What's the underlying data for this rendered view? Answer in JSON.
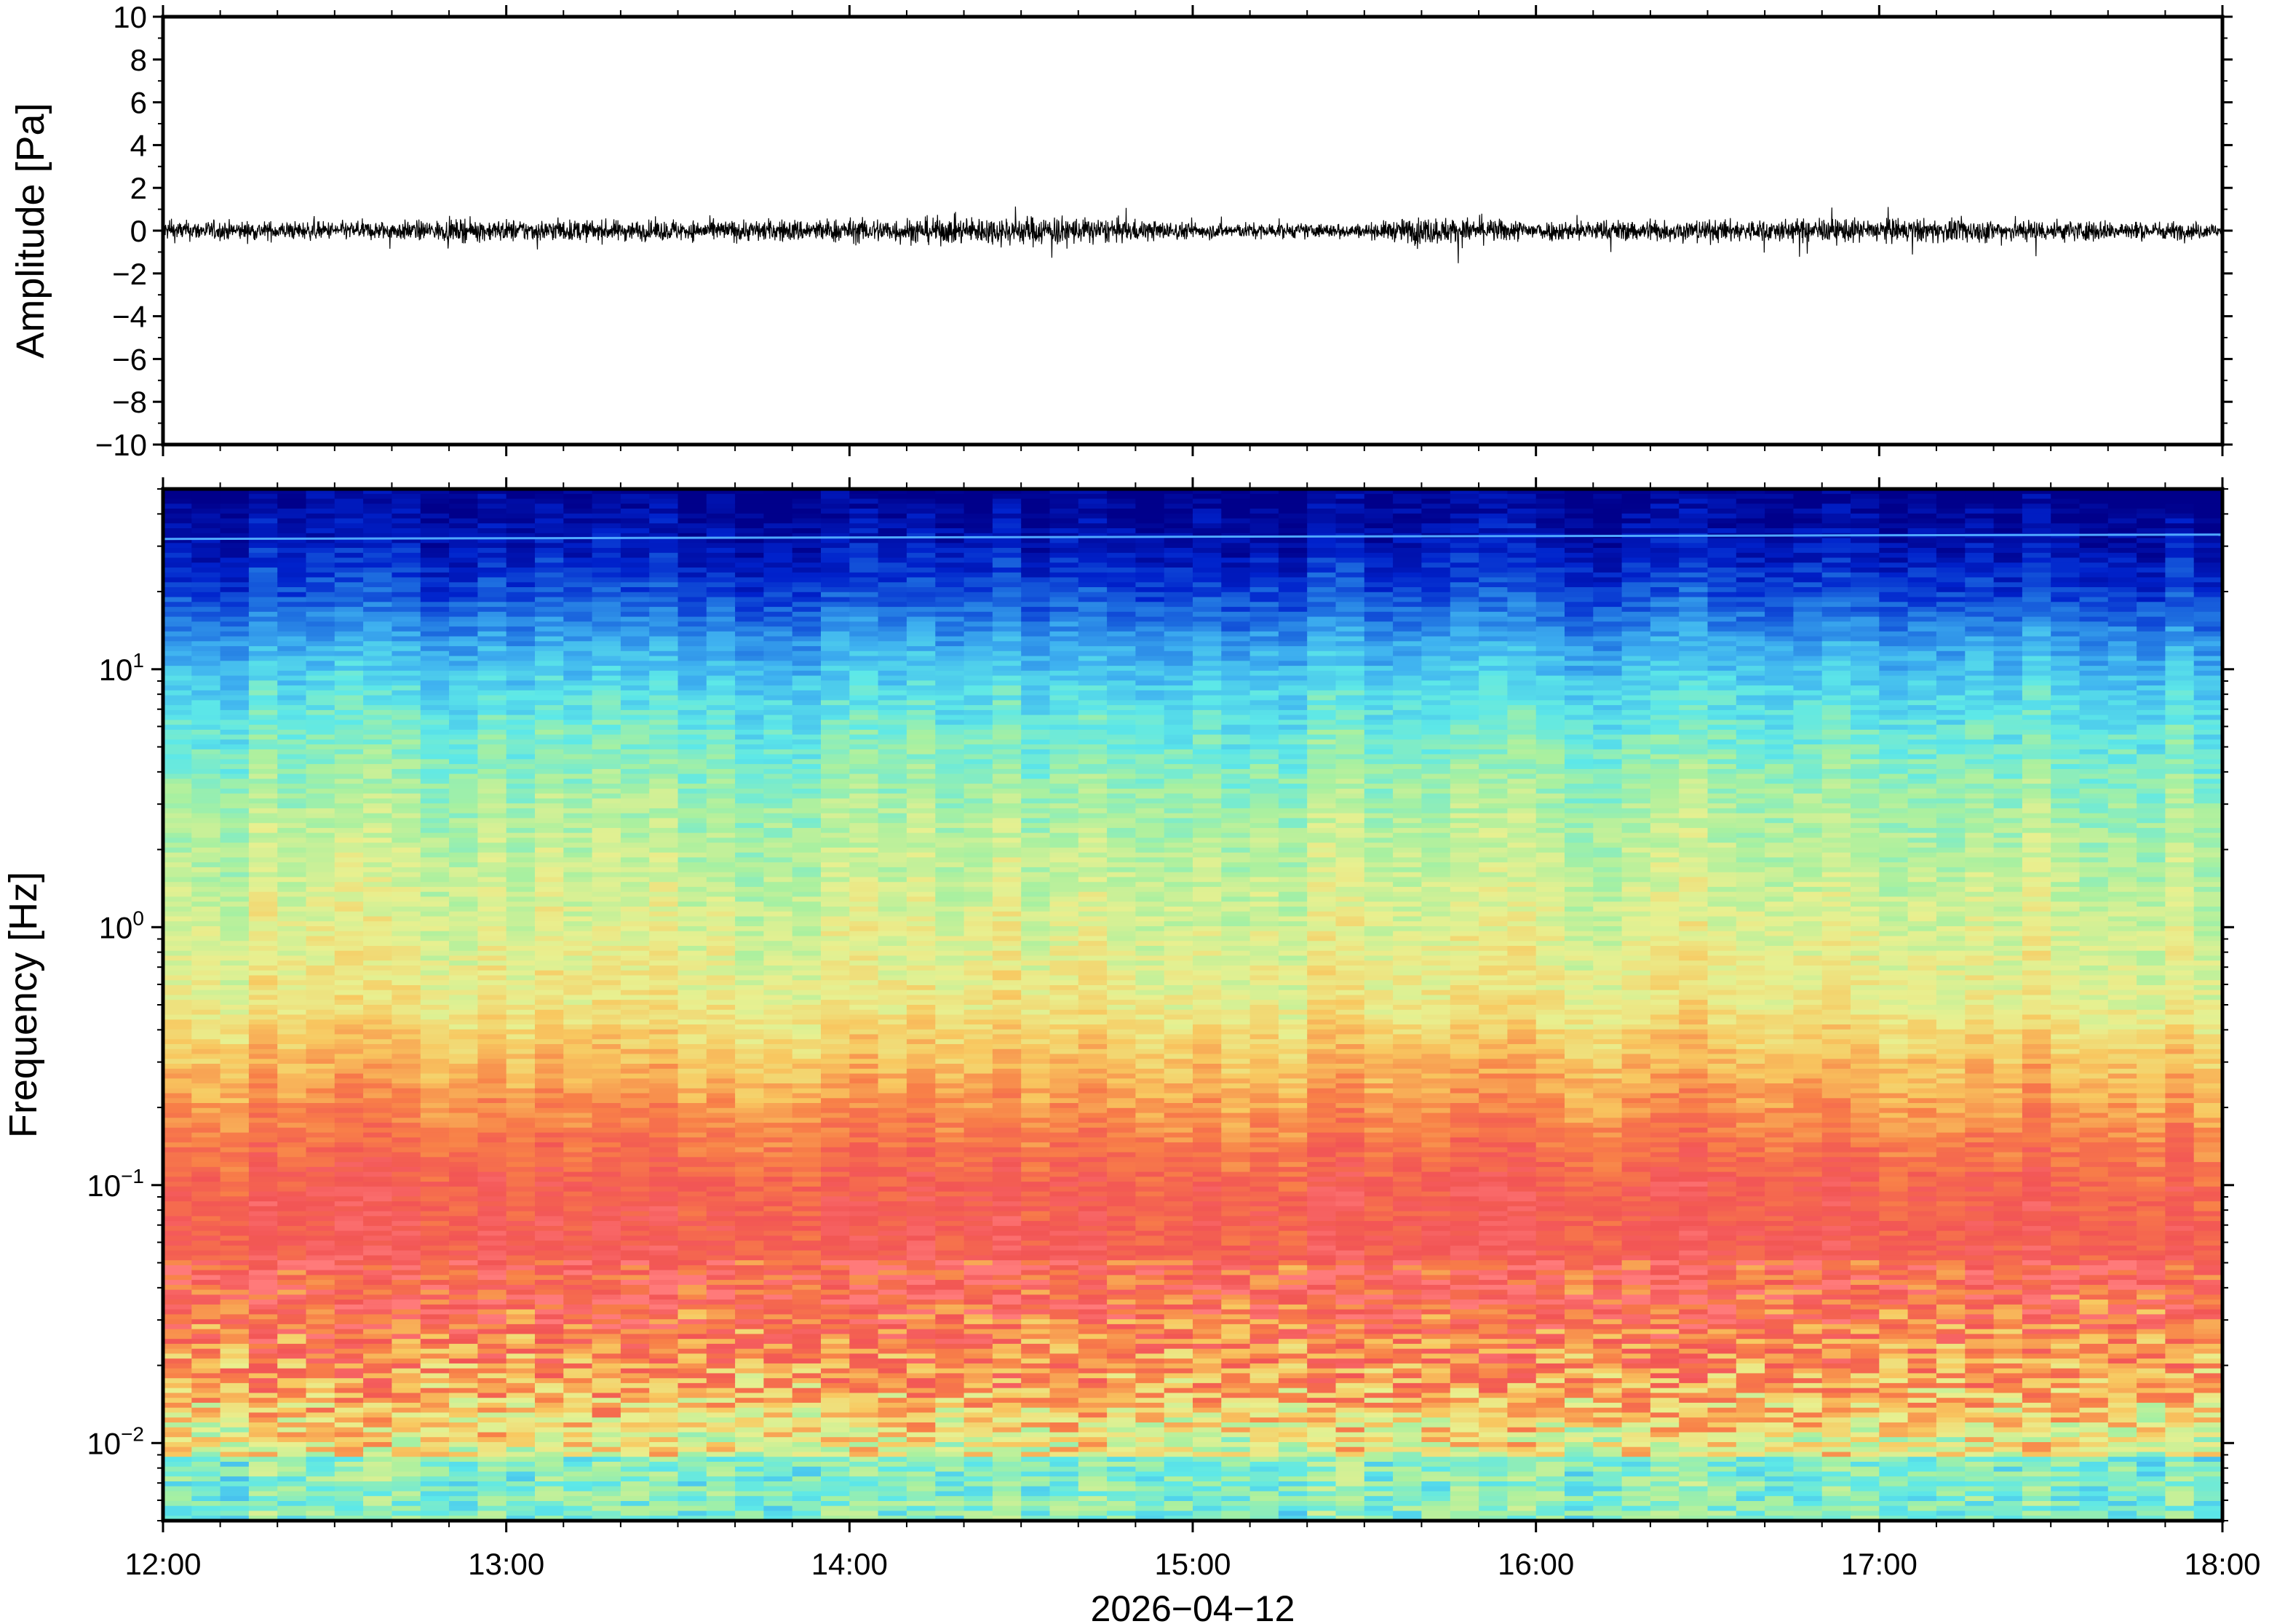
{
  "chart_data": [
    {
      "type": "line",
      "panel": "waveform",
      "ylabel": "Amplitude [Pa]",
      "ylim": [
        -10,
        10
      ],
      "yticks": [
        -10,
        -8,
        -6,
        -4,
        -2,
        0,
        2,
        4,
        6,
        8,
        10
      ],
      "ytick_labels": [
        "−10",
        "−8",
        "−6",
        "−4",
        "−2",
        "0",
        "2",
        "4",
        "6",
        "8",
        "10"
      ],
      "x_range": [
        "2026-04-12T12:00",
        "2026-04-12T18:00"
      ],
      "noise_envelope_pa": [
        {
          "t": "12:00",
          "amp": 1.0
        },
        {
          "t": "12:30",
          "amp": 0.9
        },
        {
          "t": "13:00",
          "amp": 1.1
        },
        {
          "t": "13:30",
          "amp": 1.0
        },
        {
          "t": "14:00",
          "amp": 1.2
        },
        {
          "t": "14:35",
          "amp": 1.5
        },
        {
          "t": "15:00",
          "amp": 0.8
        },
        {
          "t": "15:30",
          "amp": 0.7
        },
        {
          "t": "15:40",
          "amp": 1.4
        },
        {
          "t": "16:00",
          "amp": 1.0
        },
        {
          "t": "17:00",
          "amp": 1.2
        },
        {
          "t": "17:30",
          "amp": 1.1
        },
        {
          "t": "18:00",
          "amp": 0.8
        }
      ]
    },
    {
      "type": "heatmap",
      "panel": "spectrogram",
      "ylabel": "Frequency [Hz]",
      "yscale": "log",
      "ylim": [
        0.005,
        50
      ],
      "yticks": [
        {
          "value": 0.01,
          "base": "10",
          "exp": "−2"
        },
        {
          "value": 0.1,
          "base": "10",
          "exp": "−1"
        },
        {
          "value": 1,
          "base": "10",
          "exp": "0"
        },
        {
          "value": 10,
          "base": "10",
          "exp": "1"
        }
      ],
      "colormap": [
        "#00008b",
        "#0022cc",
        "#1e6fe0",
        "#3fb2f0",
        "#5de8e8",
        "#a8f0a0",
        "#e8f090",
        "#f8c860",
        "#f88048",
        "#f25555",
        "#ff7a7a"
      ],
      "low_freq_colormap_floor": "#5de8e8",
      "persistent_line_hz": 32
    }
  ],
  "xaxis": {
    "ticks": [
      "12:00",
      "13:00",
      "14:00",
      "15:00",
      "16:00",
      "17:00",
      "18:00"
    ],
    "date_label": "2026−04−12"
  }
}
